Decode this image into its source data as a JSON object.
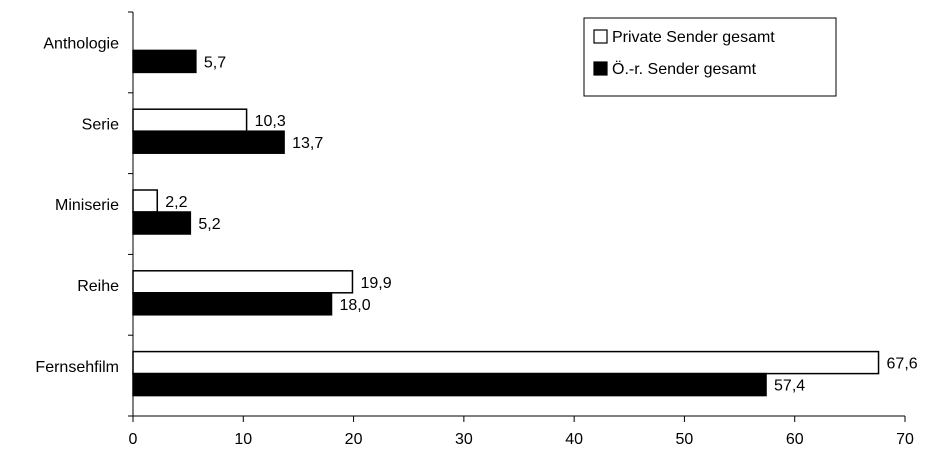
{
  "chart_data": {
    "type": "bar",
    "orientation": "horizontal",
    "categories": [
      "Anthologie",
      "Serie",
      "Miniserie",
      "Reihe",
      "Fernsehfilm"
    ],
    "series": [
      {
        "name": "Private Sender gesamt",
        "color": "#ffffff",
        "values": [
          null,
          10.3,
          2.2,
          19.9,
          67.6
        ],
        "labels": [
          "",
          "10,3",
          "2,2",
          "19,9",
          "67,6"
        ]
      },
      {
        "name": "Ö.-r. Sender gesamt",
        "color": "#000000",
        "values": [
          5.7,
          13.7,
          5.2,
          18.0,
          57.4
        ],
        "labels": [
          "5,7",
          "13,7",
          "5,2",
          "18,0",
          "57,4"
        ]
      }
    ],
    "xlim": [
      0,
      70
    ],
    "xticks": [
      0,
      10,
      20,
      30,
      40,
      50,
      60,
      70
    ],
    "xtick_labels": [
      "0",
      "10",
      "20",
      "30",
      "40",
      "50",
      "60",
      "70"
    ],
    "grid": false,
    "legend_position": "top-right",
    "title": "",
    "xlabel": "",
    "ylabel": ""
  }
}
